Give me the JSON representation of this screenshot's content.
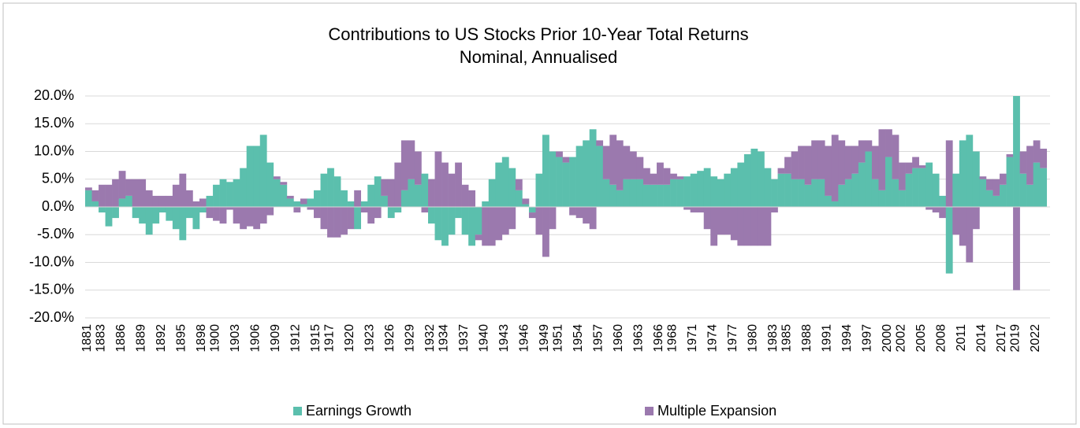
{
  "chart_data": {
    "type": "stacked_bar",
    "title": "Contributions to US Stocks Prior 10-Year Total Returns",
    "subtitle": "Nominal, Annualised",
    "x": [
      1881,
      1882,
      1883,
      1884,
      1885,
      1886,
      1887,
      1888,
      1889,
      1890,
      1891,
      1892,
      1893,
      1894,
      1895,
      1896,
      1897,
      1898,
      1899,
      1900,
      1901,
      1902,
      1903,
      1904,
      1905,
      1906,
      1907,
      1908,
      1909,
      1910,
      1911,
      1912,
      1913,
      1914,
      1915,
      1916,
      1917,
      1918,
      1919,
      1920,
      1921,
      1922,
      1923,
      1924,
      1925,
      1926,
      1927,
      1928,
      1929,
      1930,
      1931,
      1932,
      1933,
      1934,
      1935,
      1936,
      1937,
      1938,
      1939,
      1940,
      1941,
      1942,
      1943,
      1944,
      1945,
      1946,
      1947,
      1948,
      1949,
      1950,
      1951,
      1952,
      1953,
      1954,
      1955,
      1956,
      1957,
      1958,
      1959,
      1960,
      1961,
      1962,
      1963,
      1964,
      1965,
      1966,
      1967,
      1968,
      1969,
      1970,
      1971,
      1972,
      1973,
      1974,
      1975,
      1976,
      1977,
      1978,
      1979,
      1980,
      1981,
      1982,
      1983,
      1984,
      1985,
      1986,
      1987,
      1988,
      1989,
      1990,
      1991,
      1992,
      1993,
      1994,
      1995,
      1996,
      1997,
      1998,
      1999,
      2000,
      2001,
      2002,
      2003,
      2004,
      2005,
      2006,
      2007,
      2008,
      2009,
      2010,
      2011,
      2012,
      2013,
      2014,
      2015,
      2016,
      2017,
      2018,
      2019,
      2020,
      2021,
      2022,
      2023
    ],
    "series": [
      {
        "name": "Earnings Growth",
        "color": "#5bbfad",
        "values": [
          3,
          1,
          -1,
          -3.5,
          -2,
          1.5,
          2,
          -2,
          -3,
          -5,
          -3,
          -1,
          -2.5,
          -4,
          -6,
          -2,
          -4,
          -1,
          2,
          4,
          5,
          4.5,
          5,
          7,
          11,
          11,
          13,
          8,
          5,
          4,
          1.5,
          1,
          0.5,
          1.5,
          3,
          6,
          7,
          5.5,
          3,
          1,
          -4,
          1,
          4,
          5.5,
          2,
          -2,
          -1,
          3,
          5,
          4,
          6,
          -3,
          -6,
          -7,
          -5,
          -2,
          -5,
          -7,
          -5,
          1,
          5,
          8,
          9,
          7,
          3,
          0.5,
          -1,
          6,
          13,
          10,
          9,
          8,
          9,
          11,
          12,
          14,
          11,
          5,
          4,
          3,
          5,
          5,
          5,
          4,
          4,
          4,
          4,
          5,
          5,
          5.5,
          6,
          6.5,
          7,
          5.5,
          5,
          6,
          7,
          8,
          9.5,
          10.5,
          10,
          7,
          5,
          6,
          6,
          5,
          5,
          4,
          5,
          5,
          2,
          1,
          4,
          5,
          6,
          8,
          10,
          5,
          3,
          9,
          5,
          3,
          6,
          7,
          7,
          8,
          6,
          2,
          -12,
          6,
          12,
          13,
          10,
          5,
          3,
          2,
          4,
          9,
          20,
          6,
          4,
          8,
          7
        ]
      },
      {
        "name": "Multiple Expansion",
        "color": "#9b79ae",
        "values": [
          0.5,
          2,
          4,
          4,
          5,
          5,
          3,
          5,
          5,
          3,
          2,
          2,
          2,
          4,
          6,
          3,
          1,
          1.5,
          -2,
          -2.5,
          -3,
          -0.5,
          -3,
          -4,
          -3.5,
          -4,
          -3,
          -1.5,
          0.5,
          0.5,
          0.5,
          -1,
          1,
          -0.5,
          -2,
          -4,
          -5.5,
          -5.5,
          -5,
          -4,
          3,
          -1,
          -3,
          -2,
          3,
          5,
          8,
          9,
          7,
          6,
          -1,
          5,
          10,
          8,
          6,
          8,
          4,
          3,
          -1,
          -7,
          -7,
          -6,
          -5,
          -4,
          2,
          1,
          -1,
          -5,
          -9,
          -4,
          1,
          1,
          -1.5,
          -2,
          -3,
          -4,
          1,
          6,
          9,
          9,
          6,
          5,
          4,
          3,
          2,
          4,
          3,
          1,
          0.5,
          -0.5,
          -1,
          -1,
          -4,
          -7,
          -5,
          -5,
          -6,
          -7,
          -7,
          -7,
          -7,
          -7,
          -1,
          1,
          3,
          5,
          6,
          7,
          7,
          7,
          9,
          12,
          8,
          6,
          5,
          4,
          2,
          6,
          11,
          5,
          8,
          5,
          2,
          2,
          0.5,
          -0.5,
          -1,
          -2,
          12,
          -5,
          -7,
          -10,
          -4,
          0.5,
          2,
          3,
          2,
          0.5,
          -15,
          4,
          7,
          4,
          3.5
        ]
      }
    ],
    "xlim": [
      1881,
      2024.5
    ],
    "xticks": [
      1881,
      1883,
      1886,
      1889,
      1892,
      1895,
      1898,
      1900,
      1903,
      1906,
      1909,
      1912,
      1915,
      1917,
      1920,
      1923,
      1926,
      1929,
      1932,
      1934,
      1937,
      1940,
      1943,
      1946,
      1949,
      1951,
      1954,
      1957,
      1960,
      1963,
      1966,
      1968,
      1971,
      1974,
      1977,
      1980,
      1983,
      1985,
      1988,
      1991,
      1994,
      1997,
      2000,
      2002,
      2005,
      2008,
      2011,
      2014,
      2017,
      2019,
      2022
    ],
    "ylim": [
      -20,
      20
    ],
    "yticks": [
      {
        "value": -20,
        "label": "-20.0%"
      },
      {
        "value": -15,
        "label": "-15.0%"
      },
      {
        "value": -10,
        "label": "-10.0%"
      },
      {
        "value": -5,
        "label": "-5.0%"
      },
      {
        "value": 0,
        "label": "0.0%"
      },
      {
        "value": 5,
        "label": "5.0%"
      },
      {
        "value": 10,
        "label": "10.0%"
      },
      {
        "value": 15,
        "label": "15.0%"
      },
      {
        "value": 20,
        "label": "20.0%"
      }
    ],
    "grid": true,
    "legend": "bottom"
  }
}
